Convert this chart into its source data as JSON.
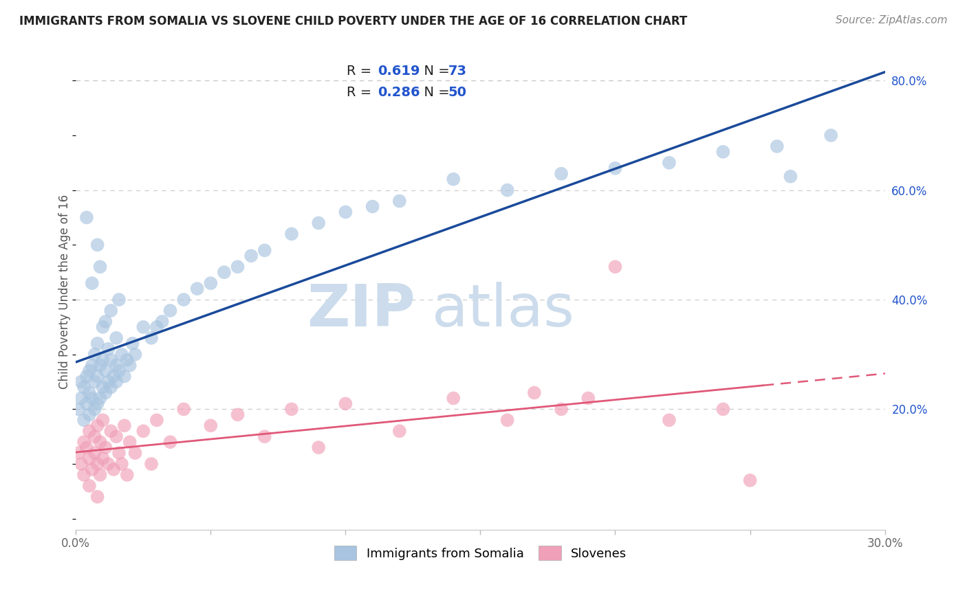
{
  "title": "IMMIGRANTS FROM SOMALIA VS SLOVENE CHILD POVERTY UNDER THE AGE OF 16 CORRELATION CHART",
  "source": "Source: ZipAtlas.com",
  "ylabel": "Child Poverty Under the Age of 16",
  "xlim": [
    0.0,
    0.3
  ],
  "ylim": [
    -0.02,
    0.85
  ],
  "xticks": [
    0.0,
    0.05,
    0.1,
    0.15,
    0.2,
    0.25,
    0.3
  ],
  "xtick_labels": [
    "0.0%",
    "",
    "",
    "",
    "",
    "",
    "30.0%"
  ],
  "yticks_right": [
    0.2,
    0.4,
    0.6,
    0.8
  ],
  "ytick_labels_right": [
    "20.0%",
    "40.0%",
    "60.0%",
    "80.0%"
  ],
  "somalia_color": "#a8c4e0",
  "somalia_line_color": "#1a4a9a",
  "slovene_color": "#f0a0b8",
  "slovene_line_color": "#e05878",
  "legend_label_somalia": "Immigrants from Somalia",
  "legend_label_slovene": "Slovenes",
  "somalia_x": [
    0.001,
    0.002,
    0.002,
    0.003,
    0.003,
    0.004,
    0.004,
    0.005,
    0.005,
    0.005,
    0.006,
    0.006,
    0.007,
    0.007,
    0.007,
    0.008,
    0.008,
    0.008,
    0.009,
    0.009,
    0.01,
    0.01,
    0.01,
    0.011,
    0.011,
    0.012,
    0.012,
    0.013,
    0.013,
    0.014,
    0.015,
    0.015,
    0.016,
    0.017,
    0.018,
    0.019,
    0.02,
    0.021,
    0.022,
    0.025,
    0.028,
    0.03,
    0.032,
    0.035,
    0.04,
    0.045,
    0.05,
    0.055,
    0.06,
    0.065,
    0.07,
    0.08,
    0.09,
    0.1,
    0.11,
    0.12,
    0.14,
    0.16,
    0.18,
    0.2,
    0.22,
    0.24,
    0.26,
    0.28,
    0.009,
    0.011,
    0.013,
    0.016,
    0.006,
    0.008,
    0.015,
    0.004,
    0.265
  ],
  "somalia_y": [
    0.2,
    0.22,
    0.25,
    0.18,
    0.24,
    0.21,
    0.26,
    0.19,
    0.23,
    0.27,
    0.22,
    0.28,
    0.2,
    0.25,
    0.3,
    0.21,
    0.26,
    0.32,
    0.22,
    0.28,
    0.24,
    0.29,
    0.35,
    0.23,
    0.27,
    0.25,
    0.31,
    0.24,
    0.29,
    0.26,
    0.28,
    0.33,
    0.27,
    0.3,
    0.26,
    0.29,
    0.28,
    0.32,
    0.3,
    0.35,
    0.33,
    0.35,
    0.36,
    0.38,
    0.4,
    0.42,
    0.43,
    0.45,
    0.46,
    0.48,
    0.49,
    0.52,
    0.54,
    0.56,
    0.57,
    0.58,
    0.62,
    0.6,
    0.63,
    0.64,
    0.65,
    0.67,
    0.68,
    0.7,
    0.46,
    0.36,
    0.38,
    0.4,
    0.43,
    0.5,
    0.25,
    0.55,
    0.625
  ],
  "slovene_x": [
    0.001,
    0.002,
    0.003,
    0.003,
    0.004,
    0.005,
    0.005,
    0.006,
    0.007,
    0.007,
    0.008,
    0.008,
    0.009,
    0.009,
    0.01,
    0.01,
    0.011,
    0.012,
    0.013,
    0.014,
    0.015,
    0.016,
    0.017,
    0.018,
    0.019,
    0.02,
    0.022,
    0.025,
    0.028,
    0.03,
    0.035,
    0.04,
    0.05,
    0.06,
    0.07,
    0.08,
    0.09,
    0.1,
    0.12,
    0.14,
    0.16,
    0.17,
    0.18,
    0.19,
    0.2,
    0.22,
    0.24,
    0.005,
    0.008,
    0.25
  ],
  "slovene_y": [
    0.12,
    0.1,
    0.14,
    0.08,
    0.13,
    0.11,
    0.16,
    0.09,
    0.15,
    0.12,
    0.1,
    0.17,
    0.08,
    0.14,
    0.11,
    0.18,
    0.13,
    0.1,
    0.16,
    0.09,
    0.15,
    0.12,
    0.1,
    0.17,
    0.08,
    0.14,
    0.12,
    0.16,
    0.1,
    0.18,
    0.14,
    0.2,
    0.17,
    0.19,
    0.15,
    0.2,
    0.13,
    0.21,
    0.16,
    0.22,
    0.18,
    0.23,
    0.2,
    0.22,
    0.46,
    0.18,
    0.2,
    0.06,
    0.04,
    0.07
  ],
  "watermark_zip": "ZIP",
  "watermark_atlas": "atlas",
  "watermark_color": "#ccdcec",
  "background_color": "#ffffff",
  "grid_color": "#cccccc",
  "blue_label_color": "#2255cc",
  "tick_color": "#666666"
}
